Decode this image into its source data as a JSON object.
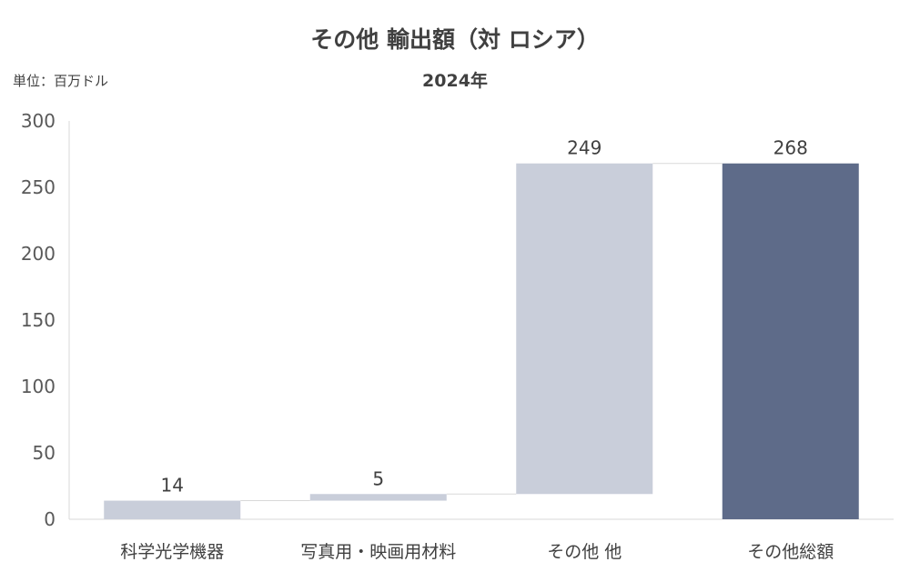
{
  "chart_data": {
    "type": "bar",
    "subtype": "waterfall",
    "title": "その他 輸出額（対 ロシア）",
    "subtitle": "2024年",
    "unit": "単位：百万ドル",
    "categories": [
      "科学光学機器",
      "写真用・映画用材料",
      "その他 他",
      "その他総額"
    ],
    "values": [
      14,
      5,
      249,
      268
    ],
    "bar_kind": [
      "increment",
      "increment",
      "increment",
      "total"
    ],
    "ylim": [
      0,
      300
    ],
    "yticks": [
      0,
      50,
      100,
      150,
      200,
      250,
      300
    ],
    "grid": false,
    "colors": {
      "increment": "#c9ceda",
      "total": "#5e6b89",
      "connector": "#d9d9d9",
      "axis": "#d9d9d9"
    }
  }
}
